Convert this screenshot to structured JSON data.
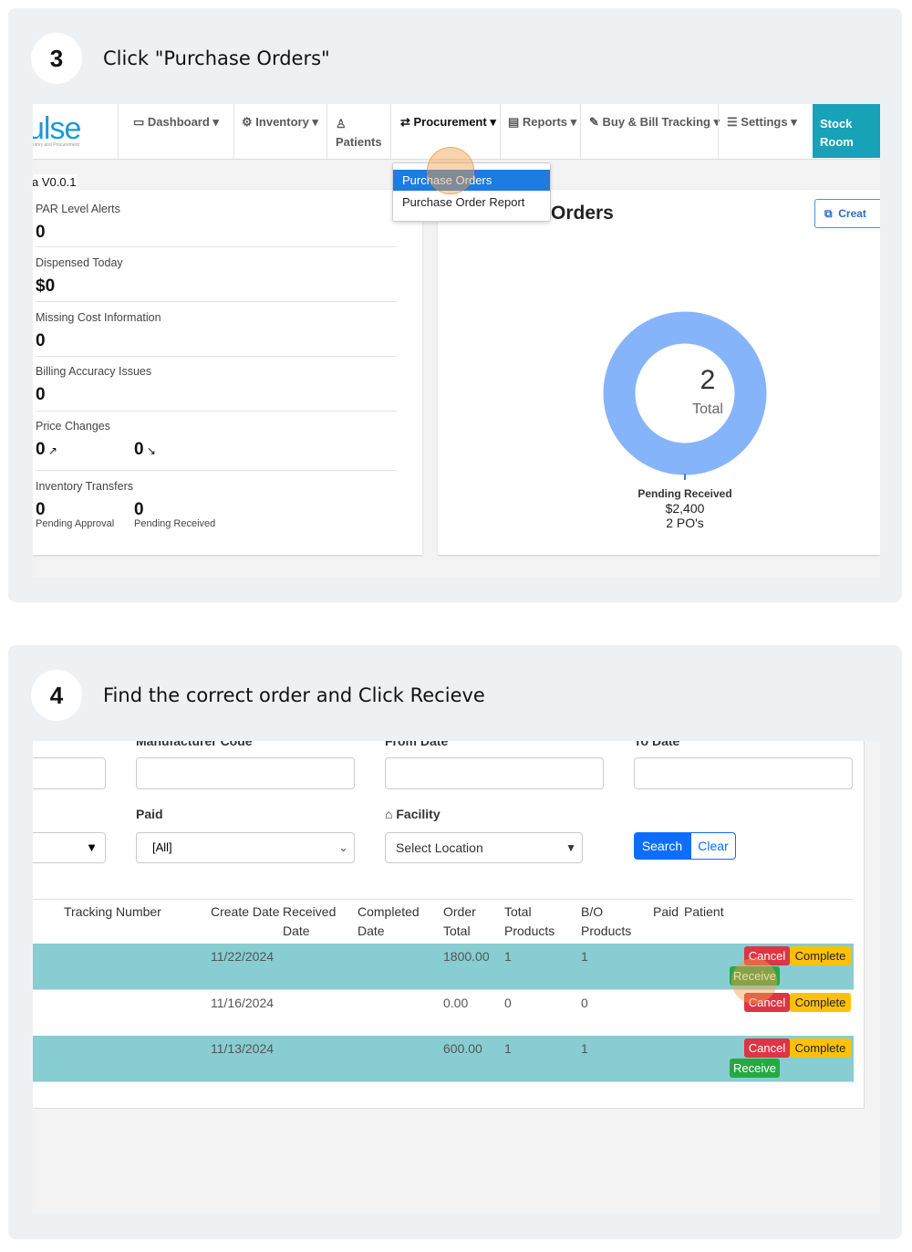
{
  "steps": [
    {
      "number": 3,
      "instruction": "Click \"Purchase Orders\"",
      "logo": "ulse",
      "logo_tagline": "ntory and Procurement",
      "version": "a V0.0.1",
      "nav": [
        "Dashboard",
        "Inventory",
        "Patients",
        "Procurement",
        "Reports",
        "Buy & Bill Tracking",
        "Settings",
        "Stock Room"
      ],
      "dropdown": [
        "Purchase Orders",
        "Purchase Order Report"
      ],
      "metrics": [
        {
          "label": "PAR Level Alerts",
          "value": 0
        },
        {
          "label": "Dispensed Today",
          "value": "$0"
        },
        {
          "label": "Missing Cost Information",
          "value": 0
        },
        {
          "label": "Billing Accuracy Issues",
          "value": 0
        }
      ],
      "price_changes": {
        "label": "Price Changes",
        "values": [
          0,
          0
        ]
      },
      "transfers": {
        "label": "Inventory Transfers",
        "items": [
          {
            "value": 0,
            "label": "Pending Approval"
          },
          {
            "value": 0,
            "label": "Pending Received"
          }
        ]
      },
      "orders_panel": {
        "title": "Orders",
        "button": "Creat",
        "total": 2,
        "total_label": "Total",
        "legend": "Pending Received",
        "amount": "$2,400",
        "count": "2 PO's"
      }
    },
    {
      "number": 4,
      "instruction": "Find the correct order and Click Recieve",
      "filters": {
        "labels": [
          "Manufacturer Code",
          "From Date",
          "To Date",
          "Paid",
          "Facility"
        ],
        "paid_value": "[All]",
        "facility_value": "Select Location",
        "buttons": [
          "Search",
          "Clear"
        ]
      },
      "table": {
        "headers": [
          "Tracking Number",
          "Create Date",
          "Received Date",
          "Completed Date",
          "Order Total",
          "Total Products",
          "B/O Products",
          "Paid",
          "Patient"
        ],
        "rows": [
          {
            "create_date": "11/22/2024",
            "order_total": "1800.00",
            "total_products": 1,
            "bo_products": 1,
            "actions": [
              "Cancel",
              "Complete",
              "Receive"
            ]
          },
          {
            "create_date": "11/16/2024",
            "order_total": "0.00",
            "total_products": 0,
            "bo_products": 0,
            "actions": [
              "Cancel",
              "Complete"
            ]
          },
          {
            "create_date": "11/13/2024",
            "order_total": "600.00",
            "total_products": 1,
            "bo_products": 1,
            "actions": [
              "Cancel",
              "Complete",
              "Receive"
            ]
          }
        ]
      }
    }
  ]
}
